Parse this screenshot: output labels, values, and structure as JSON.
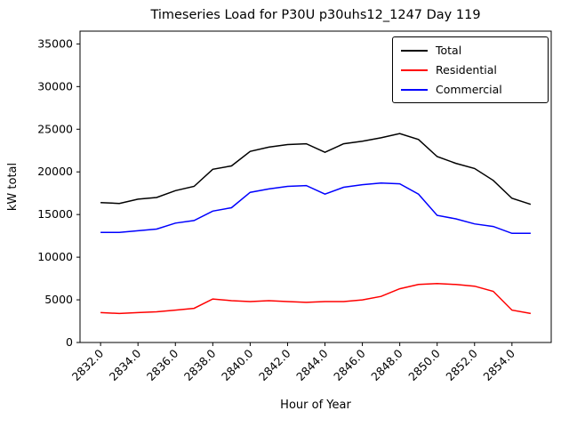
{
  "chart_data": {
    "type": "line",
    "title": "Timeseries Load for P30U p30uhs12_1247  Day 119",
    "xlabel": "Hour of Year",
    "ylabel": "kW total",
    "xlim": [
      2830.9,
      2856.1
    ],
    "ylim": [
      0,
      36500
    ],
    "grid": false,
    "legend_position": "upper right",
    "x_ticks": [
      2832,
      2834,
      2836,
      2838,
      2840,
      2842,
      2844,
      2846,
      2848,
      2850,
      2852,
      2854
    ],
    "x_tick_labels": [
      "2832.0",
      "2834.0",
      "2836.0",
      "2838.0",
      "2840.0",
      "2842.0",
      "2844.0",
      "2846.0",
      "2848.0",
      "2850.0",
      "2852.0",
      "2854.0"
    ],
    "y_ticks": [
      0,
      5000,
      10000,
      15000,
      20000,
      25000,
      30000,
      35000
    ],
    "x": [
      2832,
      2833,
      2834,
      2835,
      2836,
      2837,
      2838,
      2839,
      2840,
      2841,
      2842,
      2843,
      2844,
      2845,
      2846,
      2847,
      2848,
      2849,
      2850,
      2851,
      2852,
      2853,
      2854,
      2855
    ],
    "series": [
      {
        "name": "Total",
        "color": "#000000",
        "values": [
          16400,
          16300,
          16800,
          17000,
          17800,
          18300,
          20300,
          20700,
          22400,
          22900,
          23200,
          23300,
          22300,
          23300,
          23600,
          24000,
          24500,
          23800,
          21800,
          21000,
          20400,
          19000,
          16900,
          16200
        ]
      },
      {
        "name": "Residential",
        "color": "#ff0000",
        "values": [
          3500,
          3400,
          3500,
          3600,
          3800,
          4000,
          5100,
          4900,
          4800,
          4900,
          4800,
          4700,
          4800,
          4800,
          5000,
          5400,
          6300,
          6800,
          6900,
          6800,
          6600,
          6000,
          3800,
          3400
        ]
      },
      {
        "name": "Commercial",
        "color": "#0000ff",
        "values": [
          12900,
          12900,
          13100,
          13300,
          14000,
          14300,
          15400,
          15800,
          17600,
          18000,
          18300,
          18400,
          17400,
          18200,
          18500,
          18700,
          18600,
          17400,
          14900,
          14500,
          13900,
          13600,
          12800,
          12800
        ]
      }
    ]
  }
}
